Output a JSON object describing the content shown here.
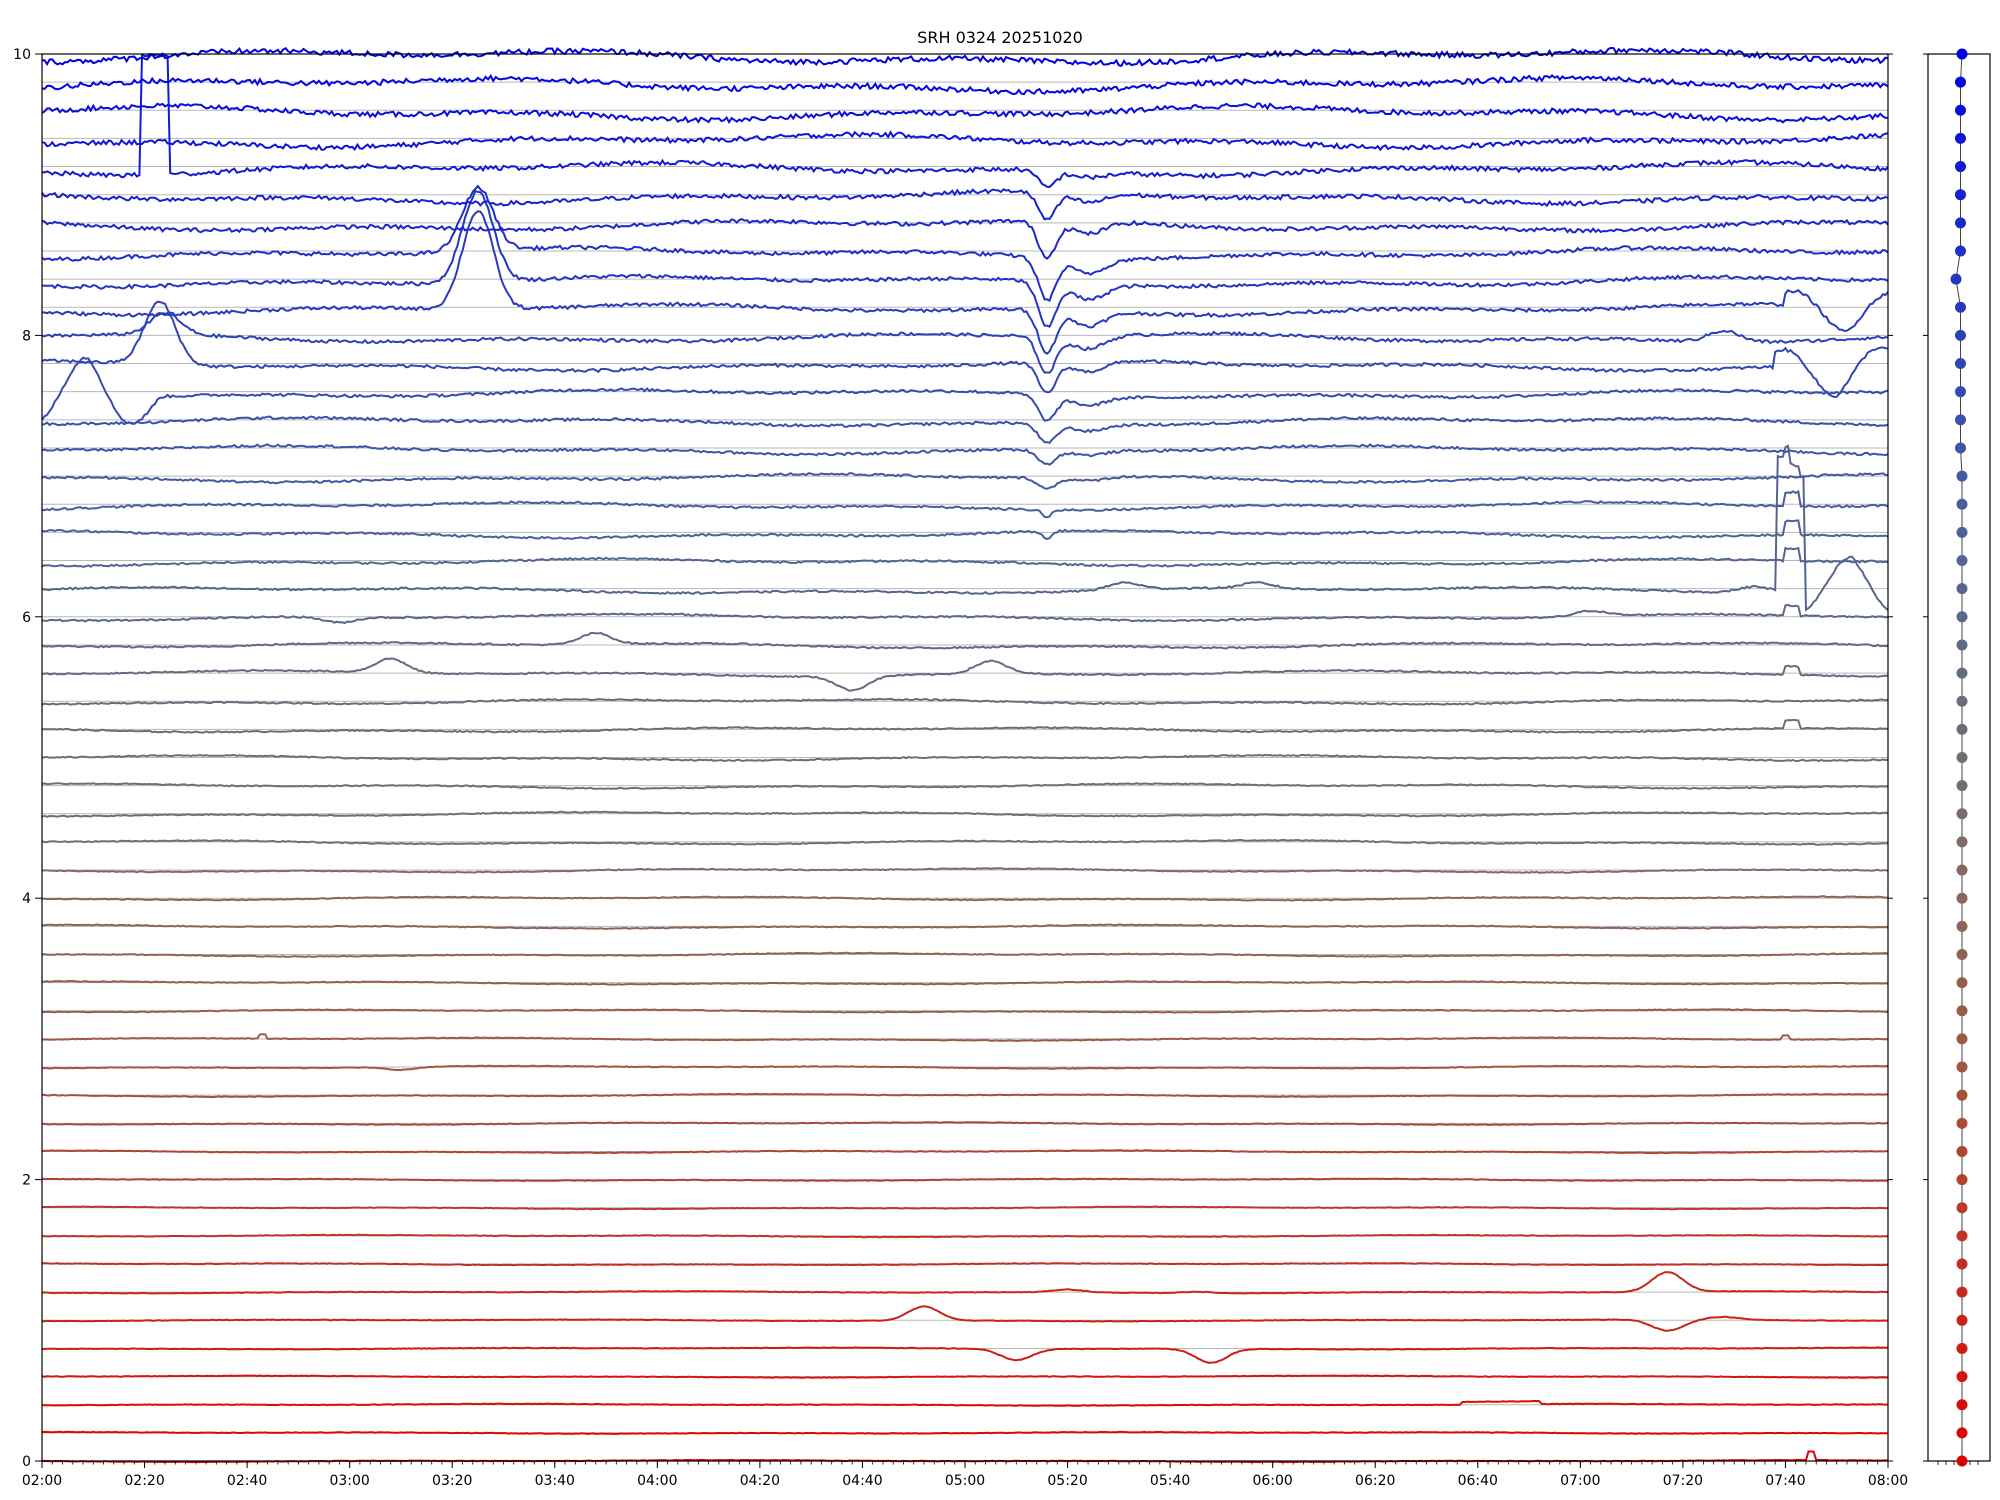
{
  "chart_data": {
    "type": "line",
    "title": "SRH 0324 20251020",
    "xlabel": "",
    "ylabel": "",
    "x_range": [
      "02:00",
      "08:00"
    ],
    "x_ticks": [
      "02:00",
      "02:20",
      "02:40",
      "03:00",
      "03:20",
      "03:40",
      "04:00",
      "04:20",
      "04:40",
      "05:00",
      "05:20",
      "05:40",
      "06:00",
      "06:20",
      "06:40",
      "07:00",
      "07:20",
      "07:40",
      "08:00"
    ],
    "ylim": [
      0,
      10
    ],
    "y_ticks": [
      "0",
      "2",
      "4",
      "6",
      "8",
      "10"
    ],
    "grid": "horizontal baselines",
    "legend": "none",
    "series_count": 51,
    "series_spacing": 0.2,
    "color_start": "#ff0000",
    "color_end": "#0000ff",
    "side_panel": {
      "type": "scatter",
      "description": "one colored marker per series at each baseline"
    },
    "events": [
      {
        "series": 0,
        "time": "07:45",
        "shape": "spike",
        "amp": 0.06
      },
      {
        "series": 2,
        "time": "06:40",
        "shape": "step-bump",
        "amp": 0.02
      },
      {
        "series": 4,
        "time": "05:10",
        "shape": "bump",
        "amp": -0.08
      },
      {
        "series": 4,
        "time": "05:48",
        "shape": "bump",
        "amp": -0.1
      },
      {
        "series": 5,
        "time": "04:52",
        "shape": "bump",
        "amp": 0.1
      },
      {
        "series": 5,
        "time": "07:17",
        "shape": "bump",
        "amp": -0.08
      },
      {
        "series": 5,
        "time": "07:28",
        "shape": "bump",
        "amp": 0.02
      },
      {
        "series": 6,
        "time": "07:17",
        "shape": "bump",
        "amp": 0.14
      },
      {
        "series": 6,
        "time": "05:20",
        "shape": "bump",
        "amp": 0.02
      },
      {
        "series": 6,
        "time": "05:45",
        "shape": "bump",
        "amp": 0.01
      },
      {
        "series": 14,
        "time": "03:10",
        "shape": "bump",
        "amp": -0.02
      },
      {
        "series": 15,
        "time": "02:43",
        "shape": "spike",
        "amp": 0.03
      },
      {
        "series": 15,
        "time": "07:40",
        "shape": "spike",
        "amp": 0.03
      },
      {
        "series": 26,
        "time": "07:41",
        "shape": "pulse",
        "amp": 0.06
      },
      {
        "series": 28,
        "time": "07:41",
        "shape": "pulse",
        "amp": 0.06
      },
      {
        "series": 30,
        "time": "07:41",
        "shape": "pulse",
        "amp": 0.07
      },
      {
        "series": 31,
        "time": "07:41",
        "shape": "pulse",
        "amp": 0.08
      },
      {
        "series": 32,
        "time": "07:41",
        "shape": "pulse",
        "amp": 0.09
      },
      {
        "series": 33,
        "time": "07:41",
        "shape": "pulse",
        "amp": 0.1
      },
      {
        "series": 34,
        "time": "07:41",
        "shape": "pulse",
        "amp": 0.1
      },
      {
        "series": 28,
        "time": "03:08",
        "shape": "bump",
        "amp": 0.1
      },
      {
        "series": 28,
        "time": "04:38",
        "shape": "bump",
        "amp": -0.1
      },
      {
        "series": 28,
        "time": "05:05",
        "shape": "bump",
        "amp": 0.09
      },
      {
        "series": 29,
        "time": "03:48",
        "shape": "bump",
        "amp": 0.08
      },
      {
        "series": 30,
        "time": "02:58",
        "shape": "bump",
        "amp": -0.04
      },
      {
        "series": 30,
        "time": "07:02",
        "shape": "bump",
        "amp": 0.04
      },
      {
        "series": 31,
        "time": "05:31",
        "shape": "bump",
        "amp": 0.05
      },
      {
        "series": 31,
        "time": "05:57",
        "shape": "bump",
        "amp": 0.04
      },
      {
        "series": 31,
        "time": "07:34",
        "shape": "bump",
        "amp": 0.04
      },
      {
        "series": 31,
        "time": "07:41",
        "shape": "box",
        "amp": 0.95
      },
      {
        "series": 31,
        "time": "07:47",
        "shape": "osc",
        "amp": 0.25
      },
      {
        "series": 33,
        "time": "05:16",
        "shape": "notch",
        "amp": -0.05
      },
      {
        "series": 34,
        "time": "05:16",
        "shape": "notch",
        "amp": -0.05
      },
      {
        "series": 35,
        "time": "05:16",
        "shape": "dip",
        "amp": -0.08
      },
      {
        "series": 36,
        "time": "05:16",
        "shape": "dip",
        "amp": -0.1
      },
      {
        "series": 37,
        "time": "05:16",
        "shape": "dip",
        "amp": -0.14
      },
      {
        "series": 38,
        "time": "05:16",
        "shape": "dip",
        "amp": -0.18
      },
      {
        "series": 39,
        "time": "05:16",
        "shape": "dip",
        "amp": -0.22
      },
      {
        "series": 40,
        "time": "05:16",
        "shape": "dip",
        "amp": -0.26
      },
      {
        "series": 41,
        "time": "05:16",
        "shape": "dip",
        "amp": -0.3
      },
      {
        "series": 42,
        "time": "05:16",
        "shape": "dip",
        "amp": -0.32
      },
      {
        "series": 43,
        "time": "05:16",
        "shape": "dip",
        "amp": -0.3
      },
      {
        "series": 44,
        "time": "05:16",
        "shape": "dip",
        "amp": -0.26
      },
      {
        "series": 45,
        "time": "05:16",
        "shape": "dip",
        "amp": -0.2
      },
      {
        "series": 46,
        "time": "05:16",
        "shape": "dip",
        "amp": -0.12
      },
      {
        "series": 41,
        "time": "03:25",
        "shape": "bump",
        "amp": 0.7
      },
      {
        "series": 42,
        "time": "03:25",
        "shape": "bump",
        "amp": 0.65
      },
      {
        "series": 43,
        "time": "03:25",
        "shape": "bump",
        "amp": 0.45
      },
      {
        "series": 38,
        "time": "02:03",
        "shape": "osc",
        "amp": 0.3
      },
      {
        "series": 39,
        "time": "02:23",
        "shape": "bump",
        "amp": 0.45
      },
      {
        "series": 40,
        "time": "02:24",
        "shape": "bump",
        "amp": 0.15
      },
      {
        "series": 46,
        "time": "02:22",
        "shape": "box",
        "amp": 0.85
      },
      {
        "series": 40,
        "time": "07:28",
        "shape": "bump",
        "amp": 0.08
      },
      {
        "series": 39,
        "time": "07:44",
        "shape": "osc",
        "amp": -0.22
      },
      {
        "series": 41,
        "time": "07:46",
        "shape": "osc",
        "amp": -0.18
      }
    ]
  }
}
